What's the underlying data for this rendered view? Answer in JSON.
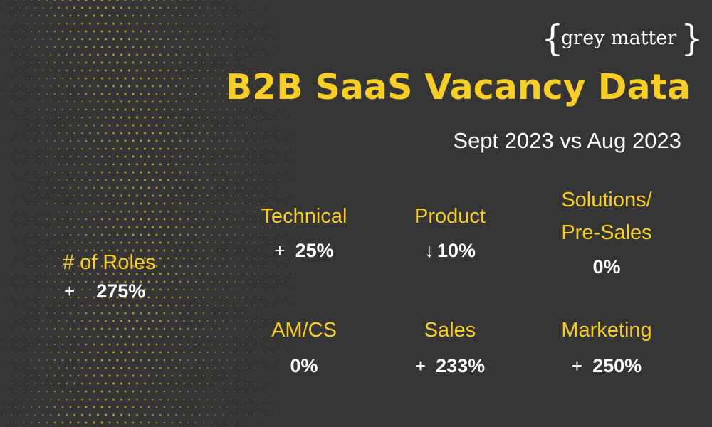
{
  "brand": {
    "logo_text": "grey matter"
  },
  "header": {
    "title": "B2B SaaS Vacancy Data",
    "subtitle": "Sept 2023 vs Aug 2023"
  },
  "colors": {
    "background": "#353535",
    "accent": "#f7cd28",
    "text": "#ffffff",
    "dots": "#c9a52a"
  },
  "stats": {
    "roles": {
      "label": "# of Roles",
      "symbol": "+",
      "direction": "up",
      "value": "275%"
    },
    "technical": {
      "label": "Technical",
      "symbol": "+",
      "direction": "up",
      "value": "25%"
    },
    "product": {
      "label": "Product",
      "symbol": "↓",
      "direction": "down",
      "value": "10%"
    },
    "solutions": {
      "label_line1": "Solutions/",
      "label_line2": "Pre-Sales",
      "symbol": "",
      "direction": "none",
      "value": "0%"
    },
    "amcs": {
      "label": "AM/CS",
      "symbol": "",
      "direction": "none",
      "value": "0%"
    },
    "sales": {
      "label": "Sales",
      "symbol": "+",
      "direction": "up",
      "value": "233%"
    },
    "marketing": {
      "label": "Marketing",
      "symbol": "+",
      "direction": "up",
      "value": "250%"
    }
  }
}
